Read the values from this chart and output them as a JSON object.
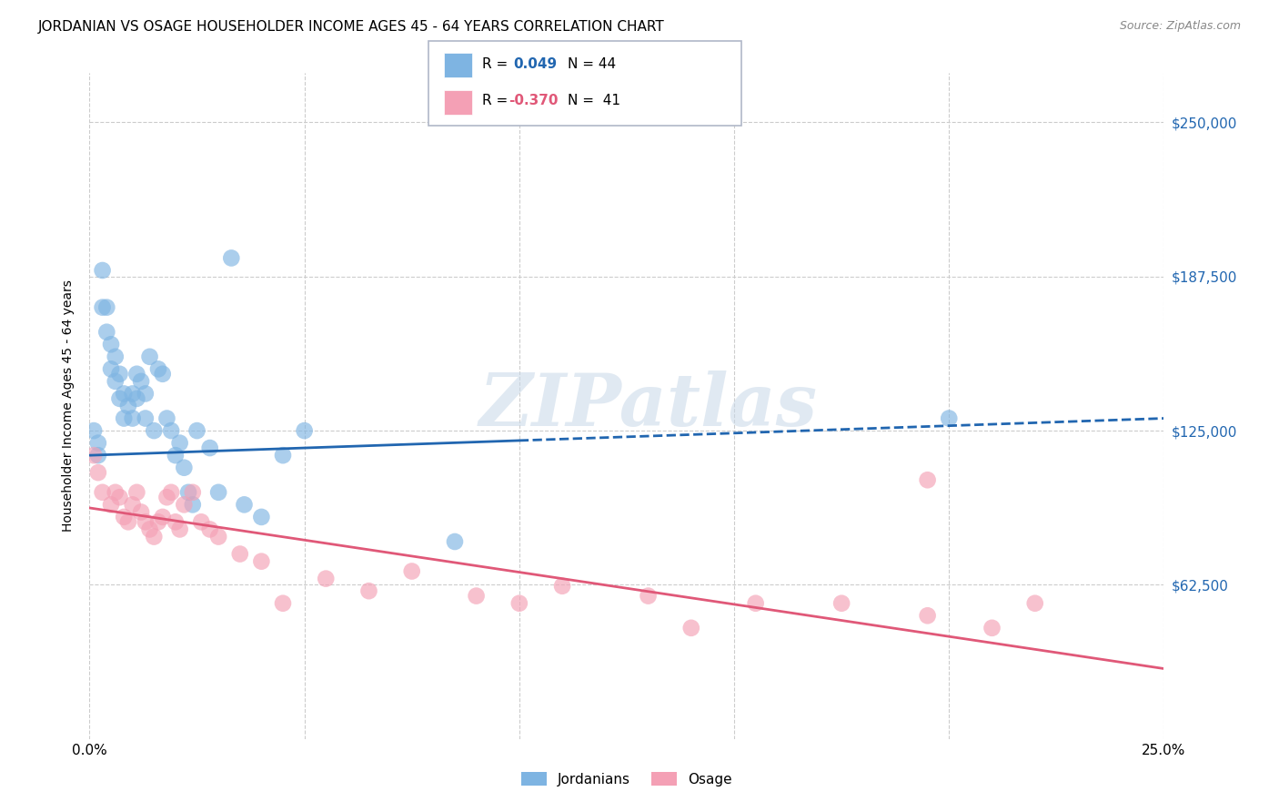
{
  "title": "JORDANIAN VS OSAGE HOUSEHOLDER INCOME AGES 45 - 64 YEARS CORRELATION CHART",
  "source": "Source: ZipAtlas.com",
  "ylabel": "Householder Income Ages 45 - 64 years",
  "xlim": [
    0.0,
    0.25
  ],
  "ylim": [
    0,
    270000
  ],
  "yticks": [
    62500,
    125000,
    187500,
    250000
  ],
  "ytick_labels": [
    "$62,500",
    "$125,000",
    "$187,500",
    "$250,000"
  ],
  "xticks": [
    0.0,
    0.05,
    0.1,
    0.15,
    0.2,
    0.25
  ],
  "xtick_labels": [
    "0.0%",
    "",
    "",
    "",
    "",
    "25.0%"
  ],
  "legend_R_blue": "R =  0.049",
  "legend_N_blue": "N = 44",
  "legend_R_pink": "R = -0.370",
  "legend_N_pink": "N =  41",
  "blue_color": "#7eb4e2",
  "pink_color": "#f4a0b5",
  "line_blue": "#2166b0",
  "line_pink": "#e05878",
  "watermark_text": "ZIPatlas",
  "blue_scatter_x": [
    0.001,
    0.002,
    0.002,
    0.003,
    0.003,
    0.004,
    0.004,
    0.005,
    0.005,
    0.006,
    0.006,
    0.007,
    0.007,
    0.008,
    0.008,
    0.009,
    0.01,
    0.01,
    0.011,
    0.011,
    0.012,
    0.013,
    0.013,
    0.014,
    0.015,
    0.016,
    0.017,
    0.018,
    0.019,
    0.02,
    0.021,
    0.022,
    0.023,
    0.024,
    0.025,
    0.028,
    0.03,
    0.033,
    0.036,
    0.04,
    0.045,
    0.05,
    0.085,
    0.2
  ],
  "blue_scatter_y": [
    125000,
    120000,
    115000,
    175000,
    190000,
    165000,
    175000,
    160000,
    150000,
    145000,
    155000,
    148000,
    138000,
    140000,
    130000,
    135000,
    140000,
    130000,
    148000,
    138000,
    145000,
    130000,
    140000,
    155000,
    125000,
    150000,
    148000,
    130000,
    125000,
    115000,
    120000,
    110000,
    100000,
    95000,
    125000,
    118000,
    100000,
    195000,
    95000,
    90000,
    115000,
    125000,
    80000,
    130000
  ],
  "pink_scatter_x": [
    0.001,
    0.002,
    0.003,
    0.005,
    0.006,
    0.007,
    0.008,
    0.009,
    0.01,
    0.011,
    0.012,
    0.013,
    0.014,
    0.015,
    0.016,
    0.017,
    0.018,
    0.019,
    0.02,
    0.021,
    0.022,
    0.024,
    0.026,
    0.028,
    0.03,
    0.035,
    0.04,
    0.045,
    0.055,
    0.065,
    0.075,
    0.09,
    0.1,
    0.11,
    0.13,
    0.14,
    0.155,
    0.175,
    0.195,
    0.21,
    0.22
  ],
  "pink_scatter_x_outlier": [
    0.195
  ],
  "pink_scatter_y_outlier": [
    105000
  ],
  "pink_scatter_y": [
    115000,
    108000,
    100000,
    95000,
    100000,
    98000,
    90000,
    88000,
    95000,
    100000,
    92000,
    88000,
    85000,
    82000,
    88000,
    90000,
    98000,
    100000,
    88000,
    85000,
    95000,
    100000,
    88000,
    85000,
    82000,
    75000,
    72000,
    55000,
    65000,
    60000,
    68000,
    58000,
    55000,
    62000,
    58000,
    45000,
    55000,
    55000,
    50000,
    45000,
    55000
  ],
  "background_color": "#ffffff",
  "grid_color": "#cccccc"
}
